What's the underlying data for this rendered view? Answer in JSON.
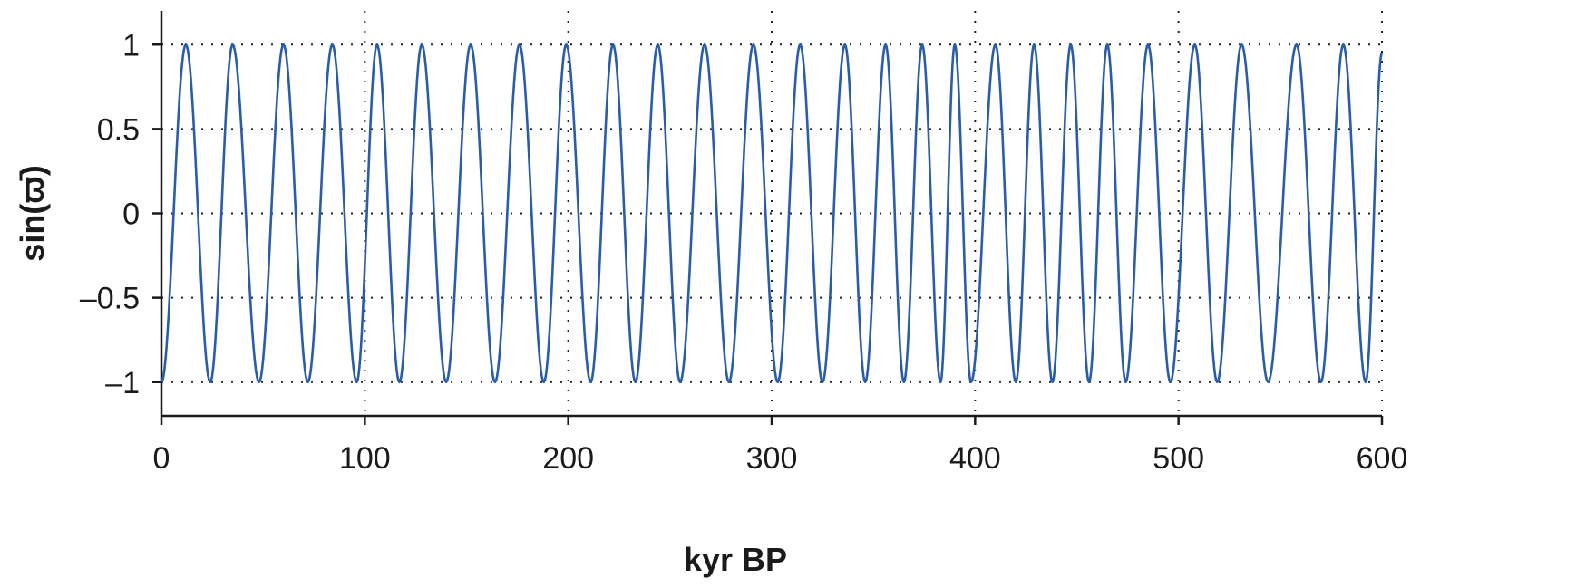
{
  "chart_data": {
    "type": "line",
    "title": "",
    "xlabel": "kyr BP",
    "ylabel": "sin(ϖ̄)",
    "xlim": [
      0,
      600
    ],
    "ylim": [
      -1.2,
      1.2
    ],
    "x_ticks": [
      0,
      100,
      200,
      300,
      400,
      500,
      600
    ],
    "x_tick_labels": [
      "0",
      "100",
      "200",
      "300",
      "400",
      "500",
      "600"
    ],
    "y_ticks": [
      1,
      0.5,
      0,
      -0.5,
      -1
    ],
    "y_tick_labels": [
      "1",
      "0.5",
      "0",
      "–0.5",
      "–1"
    ],
    "grid": "dotted",
    "legend": "none",
    "series": [
      {
        "color": "#2a5da8",
        "x": [
          0,
          12,
          24,
          35,
          48,
          60,
          72,
          84,
          96,
          106,
          117,
          128,
          140,
          152,
          164,
          176,
          188,
          199,
          211,
          222,
          233,
          244,
          255,
          267,
          279,
          291,
          303,
          314,
          325,
          336,
          346,
          356,
          365,
          374,
          383,
          390,
          398,
          410,
          420,
          429,
          438,
          447,
          456,
          465,
          474,
          485,
          496,
          508,
          519,
          531,
          544,
          558,
          570,
          581,
          592,
          600
        ],
        "y": [
          -1,
          1,
          -1,
          1,
          -1,
          1,
          -1,
          1,
          -1,
          1,
          -1,
          1,
          -1,
          1,
          -1,
          1,
          -1,
          1,
          -1,
          1,
          -1,
          1,
          -1,
          1,
          -1,
          1,
          -1,
          1,
          -1,
          1,
          -1,
          1,
          -1,
          1,
          -1,
          1,
          -1,
          1,
          -1,
          1,
          -1,
          1,
          -1,
          1,
          -1,
          1,
          -1,
          1,
          -1,
          1,
          -1,
          1,
          -1,
          1,
          -1,
          0.95
        ]
      }
    ]
  }
}
